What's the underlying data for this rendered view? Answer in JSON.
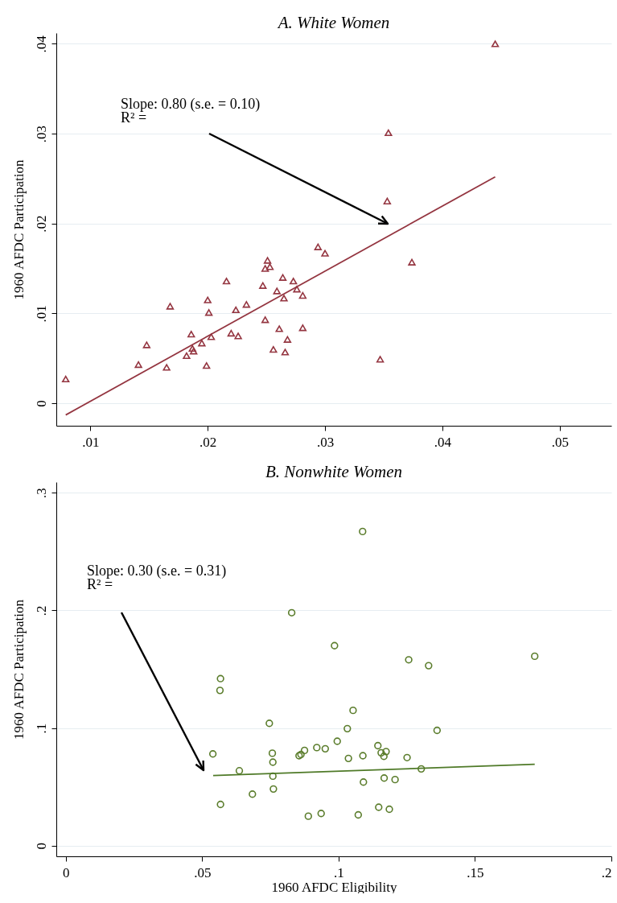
{
  "chart_data": [
    {
      "type": "scatter",
      "title": "A. White Women",
      "ylabel": "1960 AFDC Participation",
      "xlim": [
        0.0071,
        0.0544
      ],
      "ylim": [
        -0.0025,
        0.0412
      ],
      "xticks": [
        {
          "value": 0.01,
          "label": ".01"
        },
        {
          "value": 0.02,
          "label": ".02"
        },
        {
          "value": 0.03,
          "label": ".03"
        },
        {
          "value": 0.04,
          "label": ".04"
        },
        {
          "value": 0.05,
          "label": ".05"
        }
      ],
      "yticks": [
        {
          "value": 0,
          "label": "0"
        },
        {
          "value": 0.01,
          "label": ".01"
        },
        {
          "value": 0.02,
          "label": ".02"
        },
        {
          "value": 0.03,
          "label": ".03"
        },
        {
          "value": 0.04,
          "label": ".04"
        }
      ],
      "grid": "y",
      "series": [
        {
          "marker": "triangle",
          "color": "#943540",
          "x": [
            0.0079,
            0.0141,
            0.0148,
            0.0165,
            0.0168,
            0.0182,
            0.0186,
            0.0187,
            0.0188,
            0.0195,
            0.0199,
            0.02,
            0.0201,
            0.0203,
            0.0216,
            0.022,
            0.0224,
            0.0226,
            0.0233,
            0.0247,
            0.0249,
            0.0249,
            0.0251,
            0.0253,
            0.0256,
            0.0259,
            0.0261,
            0.0264,
            0.0265,
            0.0266,
            0.0268,
            0.0273,
            0.0276,
            0.0281,
            0.0281,
            0.0294,
            0.03,
            0.0347,
            0.0353,
            0.0354,
            0.0374,
            0.0445
          ],
          "values": [
            0.0027,
            0.0043,
            0.0065,
            0.004,
            0.0108,
            0.0053,
            0.0077,
            0.0061,
            0.0058,
            0.0067,
            0.0042,
            0.0115,
            0.0101,
            0.0074,
            0.0136,
            0.0078,
            0.0104,
            0.0075,
            0.011,
            0.0131,
            0.0093,
            0.015,
            0.0159,
            0.0152,
            0.006,
            0.0125,
            0.0083,
            0.014,
            0.0117,
            0.0057,
            0.0071,
            0.0136,
            0.0127,
            0.012,
            0.0084,
            0.0174,
            0.0167,
            0.0049,
            0.0225,
            0.0301,
            0.0157,
            0.04
          ]
        },
        {
          "type": "line",
          "color": "#943540",
          "x": [
            0.0079,
            0.0445
          ],
          "values": [
            -0.0013,
            0.0252
          ]
        }
      ],
      "annotations": [
        "Slope: 0.80 (s.e. = 0.10)\nR² ="
      ]
    },
    {
      "type": "scatter",
      "title": "B. Nonwhite Women",
      "xlabel": "1960 AFDC Eligibility",
      "ylabel": "1960 AFDC Participation",
      "xlim": [
        -0.0035,
        0.2
      ],
      "ylim": [
        -0.009,
        0.309
      ],
      "xticks": [
        {
          "value": 0,
          "label": "0"
        },
        {
          "value": 0.05,
          "label": ".05"
        },
        {
          "value": 0.1,
          "label": ".1"
        },
        {
          "value": 0.15,
          "label": ".15"
        },
        {
          "value": 0.2,
          "label": ".2"
        }
      ],
      "yticks": [
        {
          "value": 0,
          "label": "0"
        },
        {
          "value": 0.1,
          "label": ".1"
        },
        {
          "value": 0.2,
          "label": ".2"
        },
        {
          "value": 0.3,
          "label": ".3"
        }
      ],
      "grid": "y",
      "series": [
        {
          "marker": "circle",
          "color": "#5b7d2c",
          "x": [
            0.0567,
            0.0565,
            0.0746,
            0.0539,
            0.0757,
            0.0759,
            0.0875,
            0.0855,
            0.0862,
            0.092,
            0.0951,
            0.0995,
            0.1032,
            0.1053,
            0.1036,
            0.1089,
            0.0636,
            0.0759,
            0.0761,
            0.0684,
            0.0567,
            0.0889,
            0.0936,
            0.1072,
            0.1091,
            0.1088,
            0.0828,
            0.0985,
            0.1257,
            0.133,
            0.1719,
            0.1361,
            0.1144,
            0.1156,
            0.1174,
            0.1166,
            0.1251,
            0.1303,
            0.1167,
            0.1207,
            0.1147,
            0.1186
          ],
          "values": [
            0.142,
            0.132,
            0.104,
            0.078,
            0.0786,
            0.071,
            0.081,
            0.0765,
            0.0775,
            0.0834,
            0.0824,
            0.0888,
            0.0995,
            0.115,
            0.0742,
            0.0765,
            0.0637,
            0.0591,
            0.0482,
            0.0438,
            0.0351,
            0.0251,
            0.0274,
            0.0262,
            0.0541,
            0.267,
            0.198,
            0.17,
            0.158,
            0.153,
            0.161,
            0.098,
            0.085,
            0.079,
            0.08,
            0.076,
            0.0749,
            0.0653,
            0.0575,
            0.0562,
            0.0327,
            0.031
          ]
        },
        {
          "type": "line",
          "color": "#4f7a28",
          "x": [
            0.054,
            0.1719
          ],
          "values": [
            0.0596,
            0.0692
          ]
        }
      ],
      "annotations": [
        "Slope: 0.30 (s.e. = 0.31)\nR² ="
      ]
    }
  ]
}
